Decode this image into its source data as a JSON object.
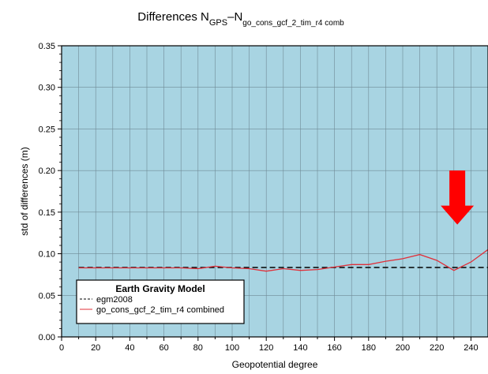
{
  "chart_data": {
    "type": "line",
    "title": {
      "main": "Differences N",
      "sub1": "GPS",
      "dash": "–N",
      "sub2": "go_cons_gcf_2_tim_r4 comb"
    },
    "xlabel": "Geopotential degree",
    "ylabel": "std of differences (m)",
    "xlim": [
      0,
      250
    ],
    "ylim": [
      0,
      0.35
    ],
    "x_ticks": [
      0,
      20,
      40,
      60,
      80,
      100,
      120,
      140,
      160,
      180,
      200,
      220,
      240
    ],
    "x_tick_labels": [
      "0",
      "20",
      "40",
      "60",
      "80",
      "100",
      "120",
      "140",
      "160",
      "180",
      "200",
      "220",
      "240"
    ],
    "y_ticks": [
      0,
      0.05,
      0.1,
      0.15,
      0.2,
      0.25,
      0.3,
      0.35
    ],
    "y_tick_labels": [
      "0.00",
      "0.05",
      "0.10",
      "0.15",
      "0.20",
      "0.25",
      "0.30",
      "0.35"
    ],
    "x_grid_step": 10,
    "y_grid_step": 0.05,
    "grid": true,
    "background_color": "#a8d4e2",
    "legend": {
      "title": "Earth Gravity Model",
      "placement": "bottom-left",
      "entries": [
        "egm2008",
        "go_cons_gcf_2_tim_r4 combined"
      ]
    },
    "series": [
      {
        "name": "egm2008",
        "style": "dashed",
        "color": "#000000",
        "x": [
          10,
          250
        ],
        "y": [
          0.0835,
          0.0835
        ]
      },
      {
        "name": "go_cons_gcf_2_tim_r4 combined",
        "style": "solid",
        "color": "#e0303a",
        "x": [
          10,
          20,
          30,
          40,
          50,
          60,
          70,
          80,
          90,
          100,
          110,
          120,
          130,
          140,
          150,
          160,
          170,
          180,
          190,
          200,
          210,
          220,
          230,
          240,
          250
        ],
        "y": [
          0.083,
          0.083,
          0.083,
          0.083,
          0.083,
          0.083,
          0.083,
          0.082,
          0.085,
          0.083,
          0.082,
          0.079,
          0.082,
          0.08,
          0.081,
          0.084,
          0.087,
          0.087,
          0.091,
          0.094,
          0.099,
          0.092,
          0.08,
          0.09,
          0.105
        ]
      }
    ],
    "annotations": [
      {
        "type": "arrow",
        "color": "#ff0000",
        "x": 232,
        "y_top": 0.2,
        "y_bottom": 0.135
      }
    ]
  }
}
